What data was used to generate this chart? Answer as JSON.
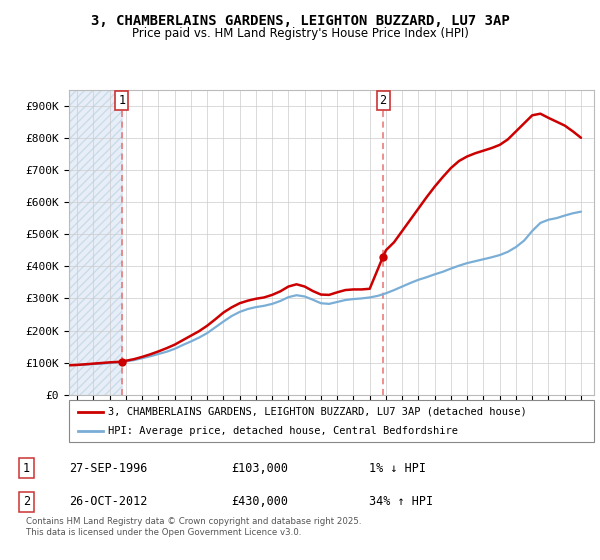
{
  "title_line1": "3, CHAMBERLAINS GARDENS, LEIGHTON BUZZARD, LU7 3AP",
  "title_line2": "Price paid vs. HM Land Registry's House Price Index (HPI)",
  "sale1_date": "27-SEP-1996",
  "sale1_price": 103000,
  "sale2_date": "26-OCT-2012",
  "sale2_price": 430000,
  "sale1_hpi_note": "1% ↓ HPI",
  "sale2_hpi_note": "34% ↑ HPI",
  "legend_line1": "3, CHAMBERLAINS GARDENS, LEIGHTON BUZZARD, LU7 3AP (detached house)",
  "legend_line2": "HPI: Average price, detached house, Central Bedfordshire",
  "footer": "Contains HM Land Registry data © Crown copyright and database right 2025.\nThis data is licensed under the Open Government Licence v3.0.",
  "property_color": "#cc0000",
  "hpi_color": "#7aaed6",
  "vline_color": "#e87070",
  "ylim_max": 950000,
  "xlim_min": 1993.5,
  "xlim_max": 2025.8,
  "sale1_x": 1996.75,
  "sale2_x": 2012.82,
  "hpi_data_x": [
    1993.5,
    1994,
    1994.5,
    1995,
    1995.5,
    1996,
    1996.5,
    1997,
    1997.5,
    1998,
    1998.5,
    1999,
    1999.5,
    2000,
    2000.5,
    2001,
    2001.5,
    2002,
    2002.5,
    2003,
    2003.5,
    2004,
    2004.5,
    2005,
    2005.5,
    2006,
    2006.5,
    2007,
    2007.5,
    2008,
    2008.5,
    2009,
    2009.5,
    2010,
    2010.5,
    2011,
    2011.5,
    2012,
    2012.5,
    2013,
    2013.5,
    2014,
    2014.5,
    2015,
    2015.5,
    2016,
    2016.5,
    2017,
    2017.5,
    2018,
    2018.5,
    2019,
    2019.5,
    2020,
    2020.5,
    2021,
    2021.5,
    2022,
    2022.5,
    2023,
    2023.5,
    2024,
    2024.5,
    2025
  ],
  "hpi_data_y": [
    92000,
    93000,
    94000,
    96000,
    97000,
    99000,
    101000,
    104000,
    108000,
    114000,
    120000,
    127000,
    134000,
    143000,
    155000,
    166000,
    178000,
    192000,
    210000,
    228000,
    245000,
    258000,
    267000,
    273000,
    277000,
    283000,
    292000,
    304000,
    310000,
    306000,
    296000,
    285000,
    283000,
    289000,
    295000,
    298000,
    300000,
    303000,
    308000,
    316000,
    326000,
    337000,
    348000,
    358000,
    366000,
    375000,
    383000,
    393000,
    402000,
    410000,
    416000,
    422000,
    428000,
    435000,
    445000,
    460000,
    480000,
    510000,
    535000,
    545000,
    550000,
    558000,
    565000,
    570000
  ],
  "prop_data_x": [
    1993.5,
    1994,
    1994.5,
    1995,
    1995.5,
    1996,
    1996.75,
    1997,
    1997.5,
    1998,
    1998.5,
    1999,
    1999.5,
    2000,
    2000.5,
    2001,
    2001.5,
    2002,
    2002.5,
    2003,
    2003.5,
    2004,
    2004.5,
    2005,
    2005.5,
    2006,
    2006.5,
    2007,
    2007.5,
    2008,
    2008.5,
    2009,
    2009.5,
    2010,
    2010.5,
    2011,
    2011.5,
    2012,
    2012.82,
    2013,
    2013.5,
    2014,
    2014.5,
    2015,
    2015.5,
    2016,
    2016.5,
    2017,
    2017.5,
    2018,
    2018.5,
    2019,
    2019.5,
    2020,
    2020.5,
    2021,
    2021.5,
    2022,
    2022.5,
    2023,
    2023.5,
    2024,
    2024.5,
    2025
  ],
  "prop_data_y": [
    92000,
    93000,
    95000,
    97000,
    99000,
    101000,
    103000,
    106000,
    111000,
    118000,
    126000,
    135000,
    145000,
    156000,
    170000,
    184000,
    198000,
    215000,
    235000,
    256000,
    272000,
    285000,
    293000,
    299000,
    303000,
    311000,
    322000,
    337000,
    344000,
    337000,
    323000,
    312000,
    311000,
    319000,
    326000,
    328000,
    328000,
    330000,
    430000,
    450000,
    475000,
    510000,
    545000,
    580000,
    615000,
    648000,
    678000,
    706000,
    728000,
    742000,
    752000,
    760000,
    768000,
    778000,
    795000,
    820000,
    845000,
    870000,
    875000,
    862000,
    850000,
    838000,
    820000,
    800000
  ]
}
